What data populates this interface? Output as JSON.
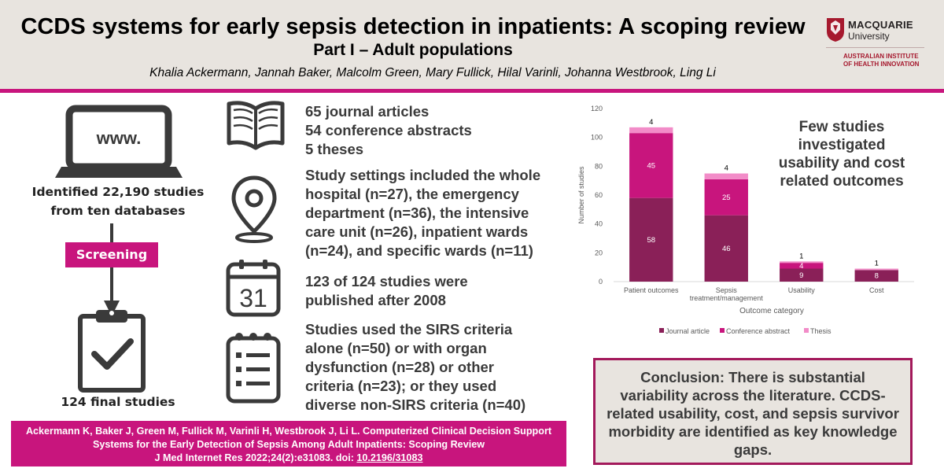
{
  "header": {
    "title": "CCDS systems for early sepsis detection in inpatients: A scoping review",
    "subtitle": "Part I – Adult populations",
    "authors": "Khalia Ackermann, Jannah Baker, Malcolm Green, Mary Fullick, Hilal Varinli, Johanna Westbrook, Ling Li",
    "logo": {
      "name_line1": "MACQUARIE",
      "name_line2": "University",
      "institute_line1": "AUSTRALIAN INSTITUTE",
      "institute_line2": "OF HEALTH INNOVATION"
    }
  },
  "flow": {
    "www_label": "www.",
    "identified": "Identified 22,190 studies from ten databases",
    "screening": "Screening",
    "final": "124 final studies"
  },
  "findings": {
    "articles": [
      "65 journal articles",
      "54 conference abstracts",
      "5 theses"
    ],
    "settings": [
      "Study settings included the whole",
      "hospital (n=27), the emergency",
      "department (n=36), the intensive",
      "care unit (n=26), inpatient wards",
      "(n=24), and specific wards (n=11)"
    ],
    "calendar_day": "31",
    "published": [
      "123 of 124 studies were",
      "published after 2008"
    ],
    "criteria": [
      "Studies used the SIRS criteria",
      "alone (n=50) or with organ",
      "dysfunction (n=28) or other",
      "criteria (n=23); or they used",
      "diverse non-SIRS criteria (n=40)"
    ]
  },
  "citation": {
    "line1": "Ackermann K, Baker J, Green M, Fullick M, Varinli H, Westbrook J, Li L. Computerized Clinical Decision Support",
    "line2": "Systems for the Early Detection of Sepsis Among Adult Inpatients: Scoping Review",
    "line3_prefix": "J Med Internet Res 2022;24(2):e31083. doi: ",
    "doi": "10.2196/31083"
  },
  "callout": [
    "Few studies",
    "investigated",
    "usability and cost",
    "related outcomes"
  ],
  "conclusion": [
    "Conclusion: There is substantial",
    "variability across the literature. CCDS-",
    "related usability, cost, and sepsis survivor",
    "morbidity are identified as key knowledge",
    "gaps."
  ],
  "colors": {
    "accent": "#c8157d",
    "journal": "#8a2058",
    "conference": "#c8157d",
    "thesis": "#f28cc8",
    "header_bg": "#e8e4df"
  },
  "icons": [
    "book-icon",
    "map-pin-icon",
    "calendar-icon",
    "checklist-icon",
    "laptop-icon",
    "clipboard-check-icon",
    "down-arrow-icon"
  ],
  "chart_data": {
    "type": "bar",
    "stacked": true,
    "categories": [
      "Patient outcomes",
      "Sepsis treatment/management",
      "Usability",
      "Cost"
    ],
    "category_label_lines": [
      [
        "Patient outcomes"
      ],
      [
        "Sepsis",
        "treatment/management"
      ],
      [
        "Usability"
      ],
      [
        "Cost"
      ]
    ],
    "series": [
      {
        "name": "Journal article",
        "values": [
          58,
          46,
          9,
          8
        ]
      },
      {
        "name": "Conference abstract",
        "values": [
          45,
          25,
          4,
          0
        ]
      },
      {
        "name": "Thesis",
        "values": [
          4,
          4,
          1,
          1
        ]
      }
    ],
    "xlabel": "Outcome category",
    "ylabel": "Number of studies",
    "ylim": [
      0,
      120
    ],
    "yticks": [
      0,
      20,
      40,
      60,
      80,
      100,
      120
    ],
    "grid": false,
    "legend": "bottom"
  }
}
